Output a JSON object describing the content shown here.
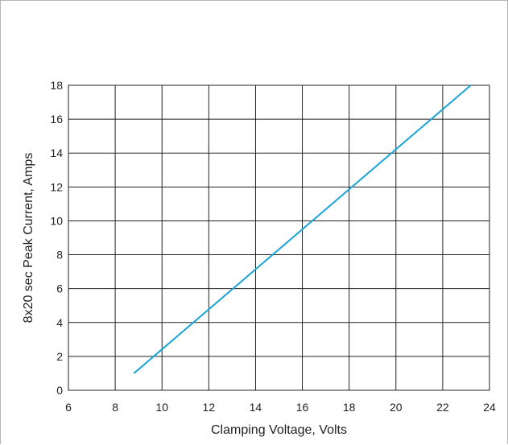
{
  "chart_data": {
    "type": "line",
    "title": "",
    "xlabel": "Clamping Voltage, Volts",
    "ylabel": "8x20  sec Peak Current, Amps",
    "xlim": [
      6,
      24
    ],
    "ylim": [
      0,
      18
    ],
    "x_ticks": [
      "6",
      "8",
      "10",
      "12",
      "14",
      "16",
      "18",
      "20",
      "22",
      "24"
    ],
    "y_ticks": [
      "0",
      "2",
      "4",
      "6",
      "8",
      "10",
      "12",
      "14",
      "16",
      "18"
    ],
    "grid": true,
    "legend": "none",
    "series": [
      {
        "color": "#1aa3d6",
        "points": [
          [
            8.8,
            1.0
          ],
          [
            23.2,
            18.0
          ]
        ]
      }
    ]
  }
}
